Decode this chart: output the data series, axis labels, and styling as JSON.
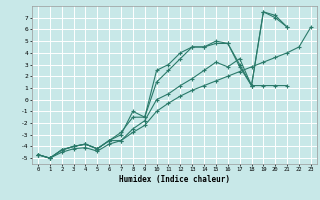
{
  "xlabel": "Humidex (Indice chaleur)",
  "bg_color": "#c8e8e8",
  "grid_color": "#ffffff",
  "line_color": "#2a7a6a",
  "xlim": [
    -0.5,
    23.5
  ],
  "ylim": [
    -5.5,
    8.0
  ],
  "xticks": [
    0,
    1,
    2,
    3,
    4,
    5,
    6,
    7,
    8,
    9,
    10,
    11,
    12,
    13,
    14,
    15,
    16,
    17,
    18,
    19,
    20,
    21,
    22,
    23
  ],
  "yticks": [
    -5,
    -4,
    -3,
    -2,
    -1,
    0,
    1,
    2,
    3,
    4,
    5,
    6,
    7
  ],
  "lines": [
    {
      "x": [
        0,
        1,
        2,
        3,
        4,
        5,
        6,
        7,
        8,
        9,
        10,
        11,
        12,
        13,
        14,
        15,
        16,
        17,
        18,
        19,
        20,
        21,
        22,
        23
      ],
      "y": [
        -4.7,
        -5.0,
        -4.5,
        -4.2,
        -4.1,
        -4.4,
        -3.8,
        -3.5,
        -2.8,
        -2.2,
        -1.0,
        -0.3,
        0.3,
        0.8,
        1.2,
        1.6,
        2.0,
        2.4,
        2.8,
        3.2,
        3.6,
        4.0,
        4.5,
        6.2
      ]
    },
    {
      "x": [
        0,
        1,
        2,
        3,
        4,
        5,
        6,
        7,
        8,
        9,
        10,
        11,
        12,
        13,
        14,
        15,
        16,
        17,
        18,
        19,
        20,
        21
      ],
      "y": [
        -4.7,
        -5.0,
        -4.3,
        -4.0,
        -3.8,
        -4.2,
        -3.5,
        -3.5,
        -2.5,
        -1.8,
        0.0,
        0.5,
        1.2,
        1.8,
        2.5,
        3.2,
        2.8,
        3.5,
        1.2,
        1.2,
        1.2,
        1.2
      ]
    },
    {
      "x": [
        0,
        1,
        2,
        3,
        4,
        5,
        6,
        7,
        8,
        9,
        10,
        11,
        12,
        13,
        14,
        15,
        16,
        17,
        18,
        19,
        20,
        21
      ],
      "y": [
        -4.7,
        -5.0,
        -4.3,
        -4.0,
        -3.8,
        -4.2,
        -3.5,
        -2.8,
        -1.5,
        -1.5,
        1.5,
        2.5,
        3.5,
        4.5,
        4.5,
        4.8,
        4.8,
        2.8,
        1.2,
        7.5,
        7.0,
        6.2
      ]
    },
    {
      "x": [
        0,
        1,
        2,
        3,
        4,
        5,
        6,
        7,
        8,
        9,
        10,
        11,
        12,
        13,
        14,
        15,
        16,
        17,
        18,
        19,
        20,
        21
      ],
      "y": [
        -4.7,
        -5.0,
        -4.3,
        -4.0,
        -3.8,
        -4.2,
        -3.5,
        -3.0,
        -1.0,
        -1.5,
        2.5,
        3.0,
        4.0,
        4.5,
        4.5,
        5.0,
        4.8,
        3.0,
        1.2,
        7.5,
        7.2,
        6.2
      ]
    }
  ]
}
